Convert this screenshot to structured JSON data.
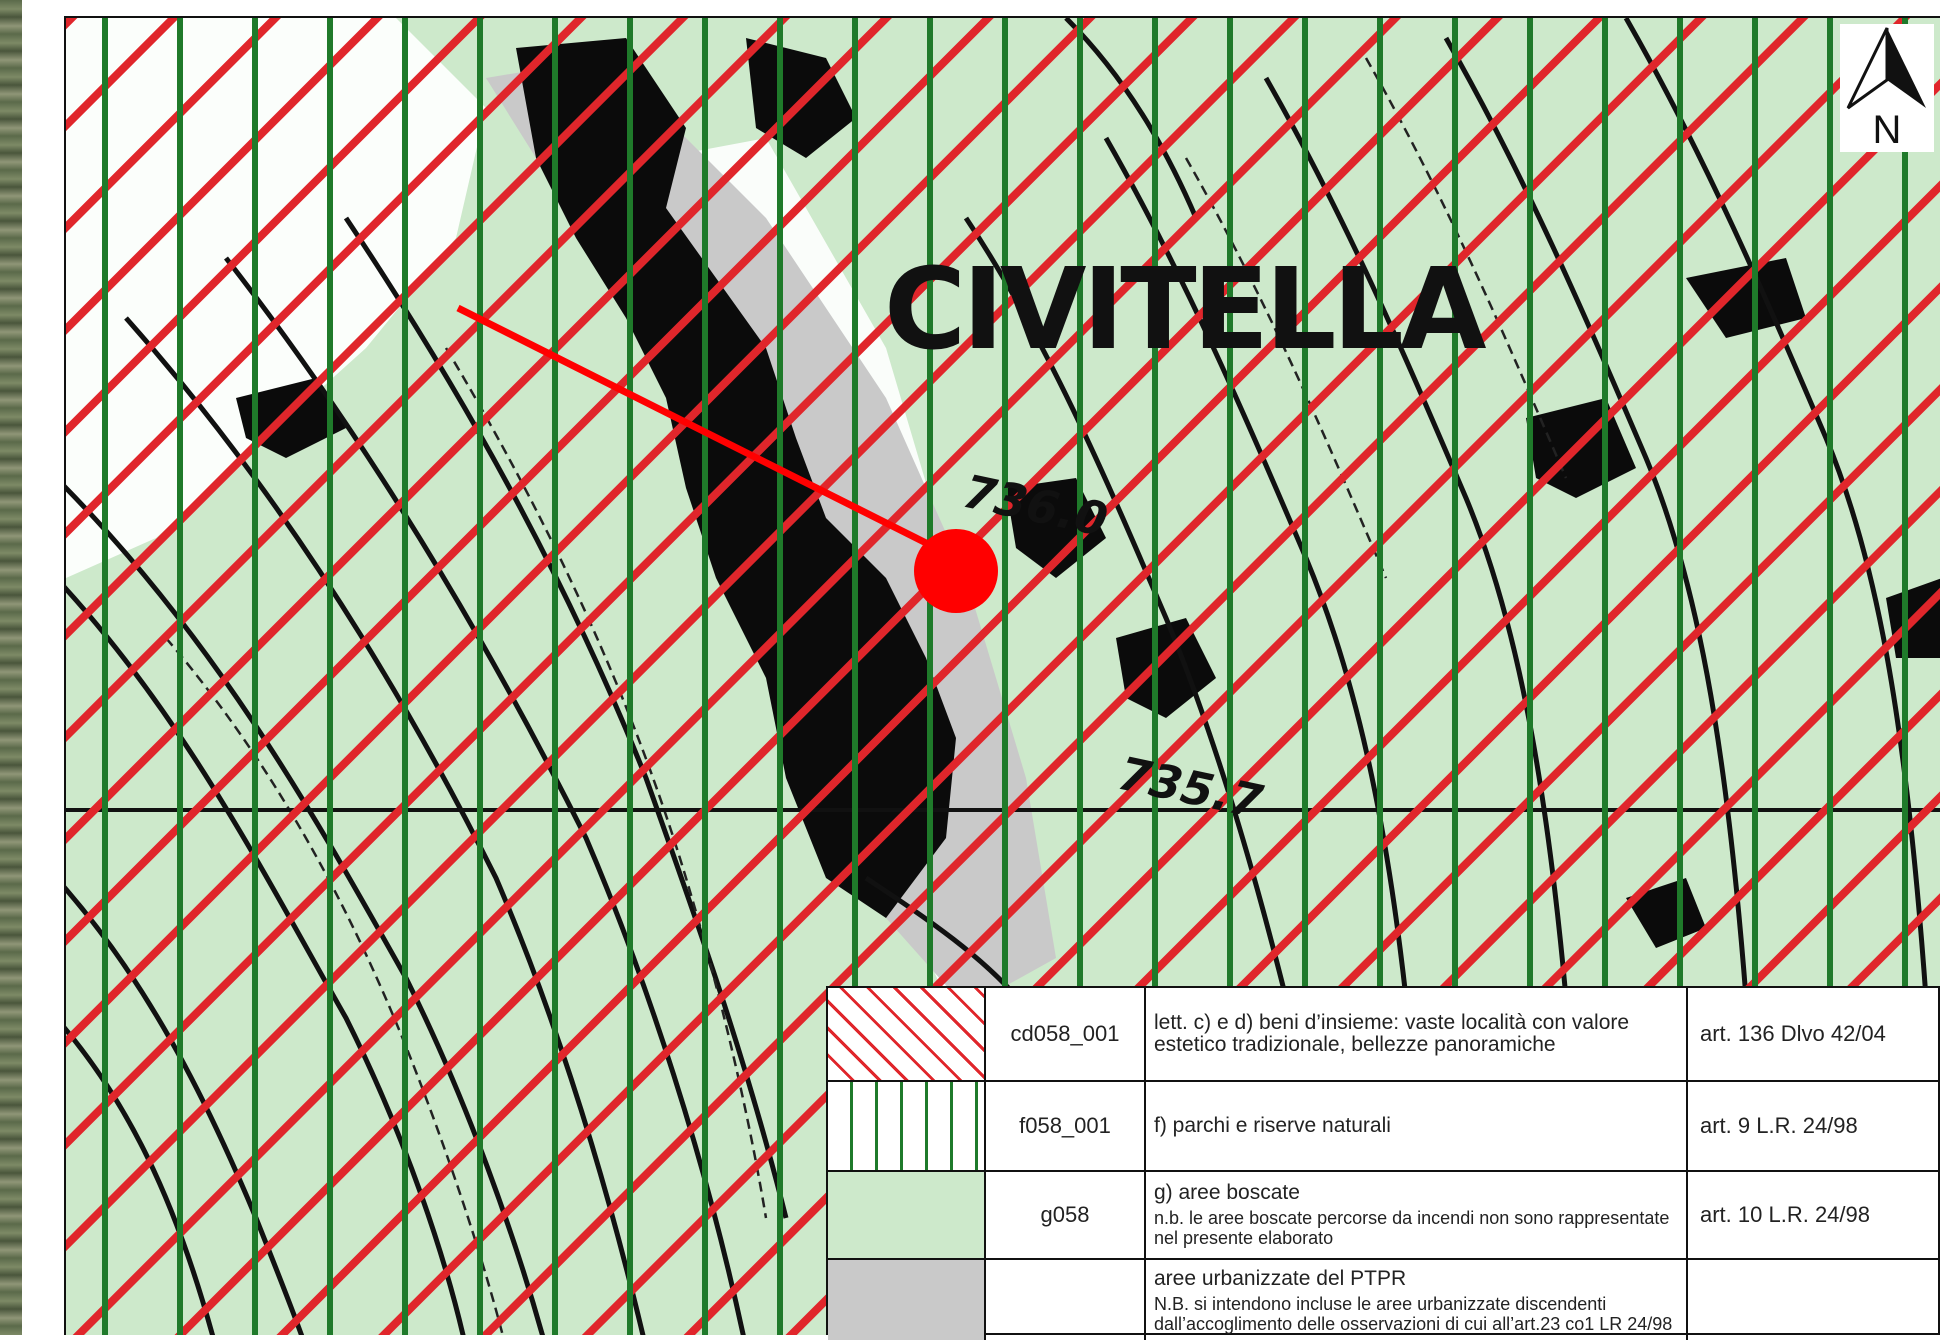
{
  "map": {
    "town_label": "CIVITELLA",
    "elevation_labels": [
      "736.0",
      "735.7"
    ],
    "north_label": "N",
    "colors": {
      "forest_fill": "#cde9cb",
      "hatch_red": "#e0262b",
      "park_green": "#1f7a2a",
      "urban_grey": "#c9c9c9",
      "marker_red": "#ff0000"
    },
    "marker": "site-location-marker"
  },
  "legend": {
    "rows": [
      {
        "swatch": "red-diagonal-hatch",
        "code": "cd058_001",
        "description": "lett. c) e d) beni d’insieme: vaste località con valore estetico tradizionale, bellezze panoramiche",
        "note": "",
        "reference": "art. 136 Dlvo 42/04"
      },
      {
        "swatch": "green-vertical-lines",
        "code": "f058_001",
        "description": "f) parchi e riserve naturali",
        "note": "",
        "reference": "art. 9 L.R. 24/98"
      },
      {
        "swatch": "light-green-fill",
        "code": "g058",
        "description": "g) aree boscate",
        "note": "n.b. le aree boscate percorse da incendi non sono rappresentate nel presente elaborato",
        "reference": "art. 10 L.R. 24/98"
      },
      {
        "swatch": "grey-fill",
        "code": "",
        "description": "aree urbanizzate del PTPR",
        "note": "N.B. si intendono incluse le aree urbanizzate discendenti dall’accoglimento delle osservazioni di cui all’art.23 co1 LR 24/98",
        "reference": ""
      }
    ]
  }
}
